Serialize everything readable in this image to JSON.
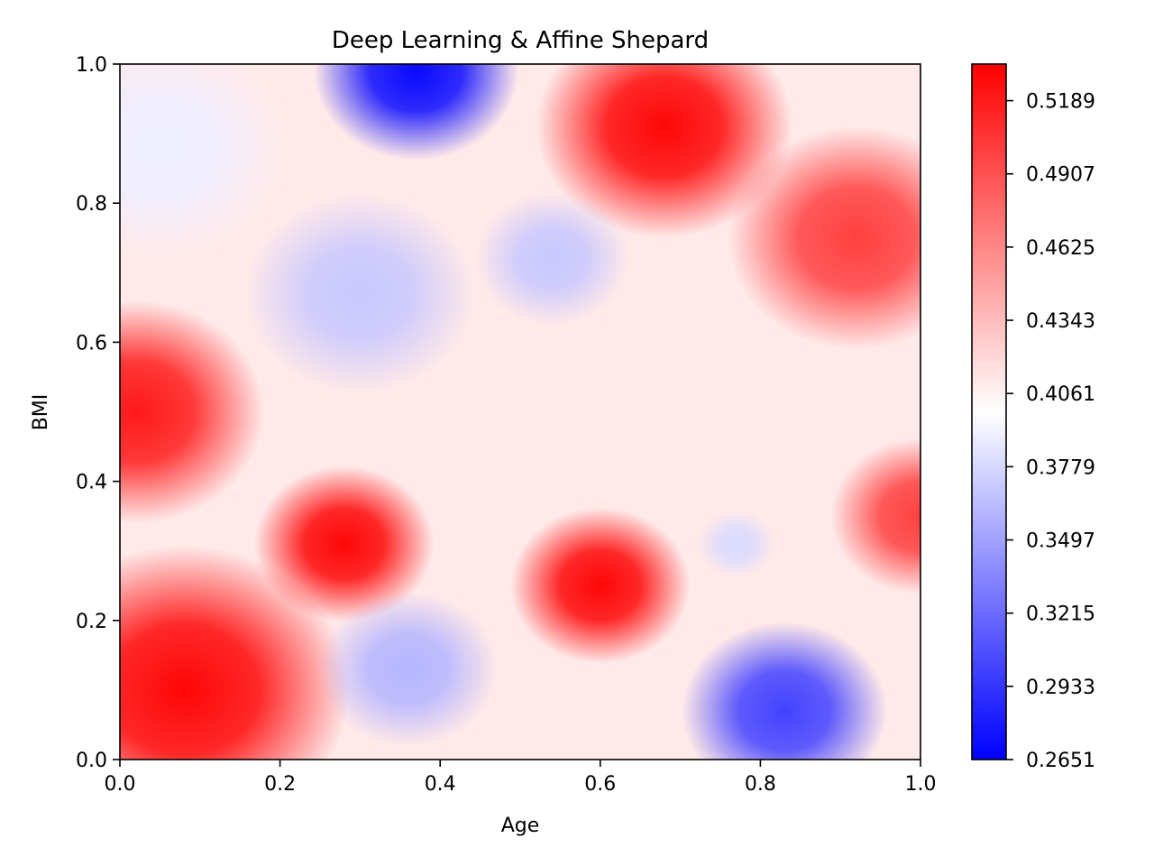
{
  "chart_data": {
    "type": "heatmap",
    "title": "Deep Learning & Affine Shepard",
    "xlabel": "Age",
    "ylabel": "BMI",
    "xlim": [
      0.0,
      1.0
    ],
    "ylim": [
      0.0,
      1.0
    ],
    "x_ticks": [
      "0.0",
      "0.2",
      "0.4",
      "0.6",
      "0.8",
      "1.0"
    ],
    "y_ticks": [
      "0.0",
      "0.2",
      "0.4",
      "0.6",
      "0.8",
      "1.0"
    ],
    "colormap": "bwr",
    "colormap_colors": [
      "#0000ff",
      "#ffffff",
      "#ff0000"
    ],
    "colorbar": {
      "range": [
        0.2651,
        0.533
      ],
      "tick_values": [
        0.2651,
        0.2933,
        0.3215,
        0.3497,
        0.3779,
        0.4061,
        0.4343,
        0.4625,
        0.4907,
        0.5189
      ],
      "tick_labels": [
        "0.2651",
        "0.2933",
        "0.3215",
        "0.3497",
        "0.3779",
        "0.4061",
        "0.4343",
        "0.4625",
        "0.4907",
        "0.5189"
      ]
    },
    "grid": false,
    "field_features": [
      {
        "x": 0.08,
        "y": 0.1,
        "value": 0.53,
        "spread": 0.13,
        "description": "red peak bottom-left"
      },
      {
        "x": 0.02,
        "y": 0.5,
        "value": 0.52,
        "spread": 0.1,
        "description": "red peak left edge"
      },
      {
        "x": 0.28,
        "y": 0.31,
        "value": 0.53,
        "spread": 0.07,
        "description": "red peak lower-left-center"
      },
      {
        "x": 0.6,
        "y": 0.25,
        "value": 0.53,
        "spread": 0.07,
        "description": "red peak lower-center"
      },
      {
        "x": 0.68,
        "y": 0.91,
        "value": 0.53,
        "spread": 0.1,
        "description": "red peak top-center-right"
      },
      {
        "x": 0.92,
        "y": 0.75,
        "value": 0.5,
        "spread": 0.1,
        "description": "red region right"
      },
      {
        "x": 1.0,
        "y": 0.35,
        "value": 0.5,
        "spread": 0.07,
        "description": "red region right edge"
      },
      {
        "x": 0.37,
        "y": 0.99,
        "value": 0.27,
        "spread": 0.08,
        "description": "blue peak top"
      },
      {
        "x": 0.83,
        "y": 0.07,
        "value": 0.3,
        "spread": 0.08,
        "description": "blue peak bottom-right"
      },
      {
        "x": 0.36,
        "y": 0.13,
        "value": 0.36,
        "spread": 0.07,
        "description": "blue region bottom-center"
      },
      {
        "x": 0.3,
        "y": 0.67,
        "value": 0.37,
        "spread": 0.09,
        "description": "blue region center-left"
      },
      {
        "x": 0.54,
        "y": 0.72,
        "value": 0.37,
        "spread": 0.06,
        "description": "blue region center"
      },
      {
        "x": 0.77,
        "y": 0.31,
        "value": 0.38,
        "spread": 0.03,
        "description": "small blue spot"
      },
      {
        "x": 0.05,
        "y": 0.88,
        "value": 0.39,
        "spread": 0.1,
        "description": "pale blue top-left"
      }
    ]
  }
}
